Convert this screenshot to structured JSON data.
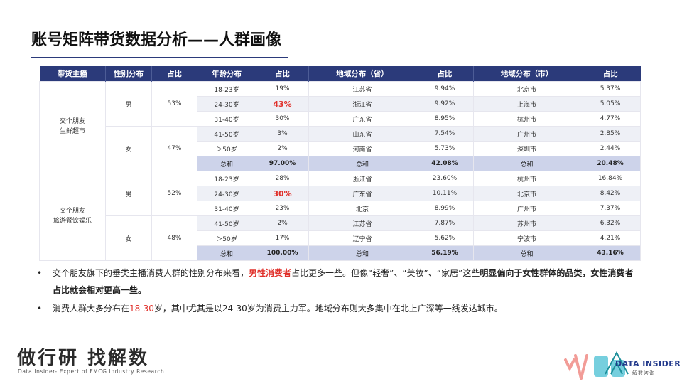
{
  "title": "账号矩阵带货数据分析——人群画像",
  "table": {
    "headers": [
      "带货主播",
      "性别分布",
      "占比",
      "年龄分布",
      "占比",
      "地域分布（省）",
      "占比",
      "地域分布（市）",
      "占比"
    ],
    "groups": [
      {
        "anchor": "交个朋友\n生鲜超市",
        "genders": [
          {
            "label": "男",
            "pct": "53%"
          },
          {
            "label": "女",
            "pct": "47%"
          }
        ],
        "rows": [
          {
            "age": "18-23岁",
            "age_pct": "19%",
            "prov": "江苏省",
            "prov_pct": "9.94%",
            "city": "北京市",
            "city_pct": "5.37%"
          },
          {
            "age": "24-30岁",
            "age_pct": "43%",
            "prov": "浙江省",
            "prov_pct": "9.92%",
            "city": "上海市",
            "city_pct": "5.05%"
          },
          {
            "age": "31-40岁",
            "age_pct": "30%",
            "prov": "广东省",
            "prov_pct": "8.95%",
            "city": "杭州市",
            "city_pct": "4.77%"
          },
          {
            "age": "41-50岁",
            "age_pct": "3%",
            "prov": "山东省",
            "prov_pct": "7.54%",
            "city": "广州市",
            "city_pct": "2.85%"
          },
          {
            "age": "＞50岁",
            "age_pct": "2%",
            "prov": "河南省",
            "prov_pct": "5.73%",
            "city": "深圳市",
            "city_pct": "2.44%"
          },
          {
            "age": "总和",
            "age_pct": "97.00%",
            "prov": "总和",
            "prov_pct": "42.08%",
            "city": "总和",
            "city_pct": "20.48%"
          }
        ]
      },
      {
        "anchor": "交个朋友\n旅游餐饮娱乐",
        "genders": [
          {
            "label": "男",
            "pct": "52%"
          },
          {
            "label": "女",
            "pct": "48%"
          }
        ],
        "rows": [
          {
            "age": "18-23岁",
            "age_pct": "28%",
            "prov": "浙江省",
            "prov_pct": "23.60%",
            "city": "杭州市",
            "city_pct": "16.84%"
          },
          {
            "age": "24-30岁",
            "age_pct": "30%",
            "prov": "广东省",
            "prov_pct": "10.11%",
            "city": "北京市",
            "city_pct": "8.42%"
          },
          {
            "age": "31-40岁",
            "age_pct": "23%",
            "prov": "北京",
            "prov_pct": "8.99%",
            "city": "广州市",
            "city_pct": "7.37%"
          },
          {
            "age": "41-50岁",
            "age_pct": "2%",
            "prov": "江苏省",
            "prov_pct": "7.87%",
            "city": "苏州市",
            "city_pct": "6.32%"
          },
          {
            "age": "＞50岁",
            "age_pct": "17%",
            "prov": "辽宁省",
            "prov_pct": "5.62%",
            "city": "宁波市",
            "city_pct": "4.21%"
          },
          {
            "age": "总和",
            "age_pct": "100.00%",
            "prov": "总和",
            "prov_pct": "56.19%",
            "city": "总和",
            "city_pct": "43.16%"
          }
        ]
      }
    ]
  },
  "bullets": {
    "b1": {
      "p1": "交个朋友旗下的垂类主播消费人群的性别分布来看，",
      "p2": "男性消费者",
      "p3": "占比更多一些。但像“轻奢”、“美妆”、“家居”这些",
      "p4": "明显偏向于女性群体的品类，女性消费者占比就会相对更高一些。"
    },
    "b2": {
      "p1": "消费人群大多分布在",
      "p2": "18-30",
      "p3": "岁，其中尤其是以24-30岁为消费主力军。地域分布则大多集中在北上广深等一线发达城市。"
    }
  },
  "footer": {
    "slogan": "做行研 找解数",
    "subtitle": "Data Insider- Expert of FMCG Industry Research",
    "brand": "DATA INSIDER",
    "brand_sub": "解数咨询"
  },
  "colors": {
    "header_bg": "#2b3a7a",
    "total_bg": "#cdd3ea",
    "highlight": "#e0302a"
  }
}
